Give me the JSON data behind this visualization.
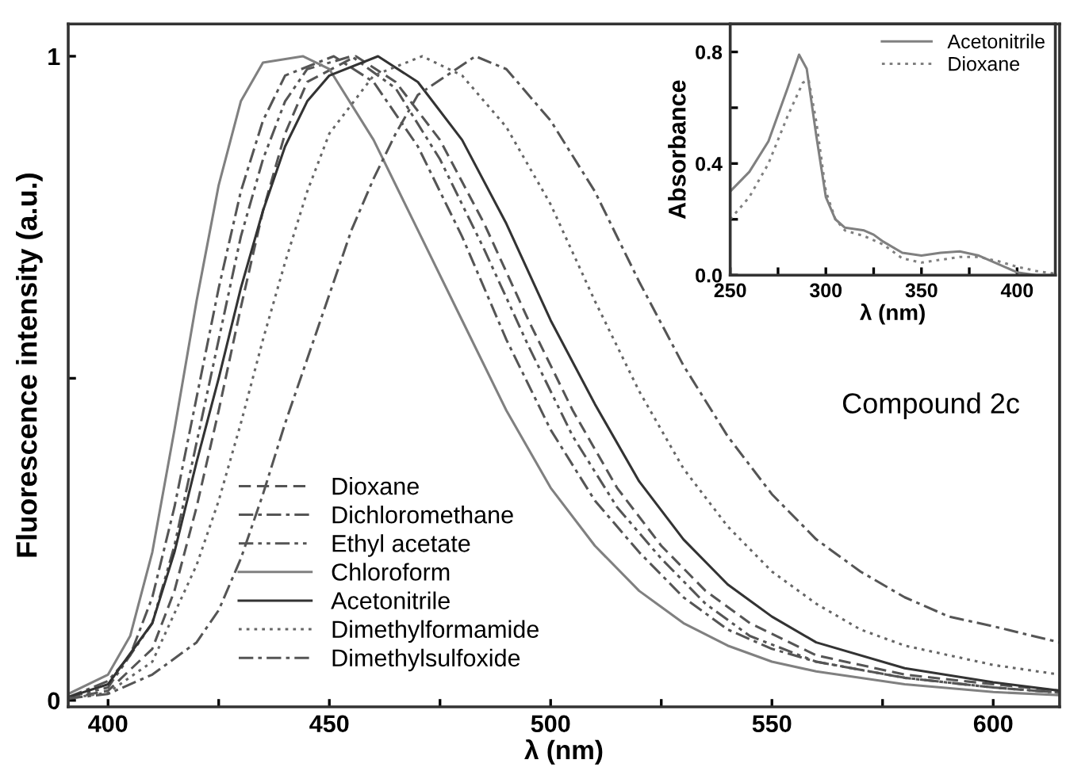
{
  "chart_data": [
    {
      "type": "line",
      "xlabel": "λ (nm)",
      "ylabel": "Fluorescence intensity (a.u.)",
      "xlim": [
        391,
        615
      ],
      "ylim": [
        -0.01,
        1.05
      ],
      "xticks": [
        400,
        {
          "value": 425,
          "label": null
        },
        450,
        {
          "value": 475,
          "label": null
        },
        500,
        {
          "value": 525,
          "label": null
        },
        550,
        {
          "value": 575,
          "label": null
        },
        600
      ],
      "yticks": [
        0,
        {
          "value": 0.5,
          "label": null
        },
        1
      ],
      "legend": "bottom",
      "grid": false,
      "annotations": [
        "Compound 2c"
      ],
      "series": [
        {
          "name": "Dioxane",
          "color": "#555555",
          "line_style": "dashed",
          "x": [
            391,
            400,
            410,
            415,
            420,
            425,
            430,
            435,
            440,
            445,
            456,
            465,
            475,
            485,
            495,
            505,
            515,
            525,
            535,
            545,
            560,
            580,
            600,
            615
          ],
          "values": [
            0.003,
            0.015,
            0.08,
            0.17,
            0.3,
            0.45,
            0.61,
            0.76,
            0.88,
            0.96,
            1.0,
            0.96,
            0.87,
            0.74,
            0.59,
            0.45,
            0.33,
            0.24,
            0.17,
            0.12,
            0.07,
            0.04,
            0.025,
            0.015
          ]
        },
        {
          "name": "Dichloromethane",
          "color": "#555555",
          "line_style": "dashdot",
          "x": [
            391,
            400,
            405,
            410,
            415,
            420,
            425,
            430,
            435,
            440,
            451,
            460,
            470,
            480,
            490,
            500,
            510,
            520,
            530,
            540,
            550,
            560,
            580,
            600,
            615
          ],
          "values": [
            0.005,
            0.03,
            0.07,
            0.16,
            0.3,
            0.47,
            0.64,
            0.79,
            0.9,
            0.97,
            1.0,
            0.96,
            0.86,
            0.72,
            0.56,
            0.42,
            0.31,
            0.23,
            0.16,
            0.11,
            0.08,
            0.06,
            0.035,
            0.02,
            0.012
          ]
        },
        {
          "name": "Ethyl acetate",
          "color": "#555555",
          "line_style": "dashdotdot",
          "x": [
            391,
            400,
            410,
            415,
            420,
            425,
            430,
            435,
            440,
            445,
            455,
            465,
            475,
            485,
            495,
            505,
            515,
            525,
            535,
            545,
            560,
            580,
            600,
            615
          ],
          "values": [
            0.005,
            0.02,
            0.12,
            0.24,
            0.4,
            0.56,
            0.72,
            0.84,
            0.93,
            0.98,
            1.0,
            0.95,
            0.84,
            0.7,
            0.55,
            0.41,
            0.3,
            0.22,
            0.15,
            0.1,
            0.06,
            0.035,
            0.02,
            0.012
          ]
        },
        {
          "name": "Chloroform",
          "color": "#808080",
          "line_style": "solid",
          "x": [
            391,
            400,
            405,
            410,
            415,
            420,
            425,
            430,
            435,
            444,
            450,
            460,
            470,
            480,
            490,
            500,
            510,
            520,
            530,
            540,
            550,
            560,
            580,
            600,
            615
          ],
          "values": [
            0.01,
            0.04,
            0.1,
            0.23,
            0.42,
            0.62,
            0.8,
            0.93,
            0.99,
            1.0,
            0.98,
            0.87,
            0.73,
            0.59,
            0.45,
            0.33,
            0.24,
            0.17,
            0.12,
            0.085,
            0.06,
            0.045,
            0.025,
            0.013,
            0.008
          ]
        },
        {
          "name": "Acetonitrile",
          "color": "#333333",
          "line_style": "solid",
          "x": [
            391,
            400,
            410,
            415,
            420,
            425,
            430,
            435,
            440,
            445,
            450,
            461,
            470,
            480,
            490,
            500,
            510,
            520,
            530,
            540,
            550,
            560,
            580,
            600,
            615
          ],
          "values": [
            0.005,
            0.025,
            0.12,
            0.23,
            0.37,
            0.5,
            0.64,
            0.76,
            0.86,
            0.93,
            0.97,
            1.0,
            0.96,
            0.87,
            0.74,
            0.59,
            0.46,
            0.34,
            0.25,
            0.18,
            0.13,
            0.09,
            0.05,
            0.028,
            0.015
          ]
        },
        {
          "name": "Dimethylformamide",
          "color": "#666666",
          "line_style": "dotted",
          "x": [
            391,
            400,
            410,
            420,
            425,
            430,
            435,
            440,
            445,
            450,
            460,
            471,
            480,
            490,
            500,
            510,
            520,
            530,
            540,
            550,
            560,
            570,
            580,
            590,
            600,
            615
          ],
          "values": [
            0.003,
            0.012,
            0.06,
            0.21,
            0.31,
            0.43,
            0.56,
            0.68,
            0.79,
            0.88,
            0.97,
            1.0,
            0.97,
            0.89,
            0.77,
            0.62,
            0.48,
            0.36,
            0.27,
            0.2,
            0.15,
            0.11,
            0.085,
            0.07,
            0.055,
            0.04
          ]
        },
        {
          "name": "Dimethylsulfoxide",
          "color": "#555555",
          "line_style": "dashdot",
          "x": [
            391,
            400,
            410,
            420,
            425,
            430,
            435,
            440,
            445,
            450,
            455,
            460,
            465,
            470,
            483,
            490,
            500,
            510,
            520,
            530,
            540,
            550,
            560,
            570,
            580,
            590,
            600,
            615
          ],
          "values": [
            0.003,
            0.01,
            0.04,
            0.09,
            0.14,
            0.22,
            0.32,
            0.43,
            0.53,
            0.63,
            0.73,
            0.81,
            0.88,
            0.94,
            1.0,
            0.98,
            0.9,
            0.79,
            0.65,
            0.52,
            0.41,
            0.32,
            0.25,
            0.2,
            0.16,
            0.13,
            0.115,
            0.09
          ]
        }
      ]
    },
    {
      "type": "line",
      "xlabel": "λ (nm)",
      "ylabel": "Absorbance",
      "xlim": [
        250,
        420
      ],
      "ylim": [
        0,
        0.9
      ],
      "xticks": [
        250,
        {
          "value": 275,
          "label": null
        },
        300,
        {
          "value": 325,
          "label": null
        },
        350,
        {
          "value": 375,
          "label": null
        },
        400
      ],
      "yticks": [
        {
          "value": 0,
          "label": "0.0"
        },
        {
          "value": 0.2,
          "label": null
        },
        {
          "value": 0.4,
          "label": "0.4"
        },
        {
          "value": 0.6,
          "label": null
        },
        {
          "value": 0.8,
          "label": "0.8"
        }
      ],
      "legend": "top right",
      "grid": false,
      "series": [
        {
          "name": "Acetonitrile",
          "color": "#808080",
          "line_style": "solid",
          "x": [
            250,
            260,
            270,
            280,
            286,
            290,
            295,
            300,
            305,
            310,
            320,
            325,
            330,
            340,
            350,
            360,
            370,
            380,
            390,
            400,
            410,
            420
          ],
          "values": [
            0.3,
            0.37,
            0.48,
            0.67,
            0.79,
            0.74,
            0.5,
            0.28,
            0.2,
            0.17,
            0.16,
            0.145,
            0.12,
            0.08,
            0.07,
            0.08,
            0.085,
            0.07,
            0.04,
            0.01,
            0.0,
            0.0
          ]
        },
        {
          "name": "Dioxane",
          "color": "#808080",
          "line_style": "dotted",
          "x": [
            250,
            260,
            270,
            280,
            288,
            291,
            295,
            300,
            305,
            310,
            320,
            330,
            340,
            350,
            360,
            370,
            380,
            390,
            400,
            410,
            420
          ],
          "values": [
            0.2,
            0.28,
            0.4,
            0.57,
            0.69,
            0.7,
            0.55,
            0.3,
            0.2,
            0.16,
            0.14,
            0.11,
            0.06,
            0.045,
            0.055,
            0.065,
            0.065,
            0.05,
            0.03,
            0.015,
            0.005
          ]
        }
      ]
    }
  ]
}
